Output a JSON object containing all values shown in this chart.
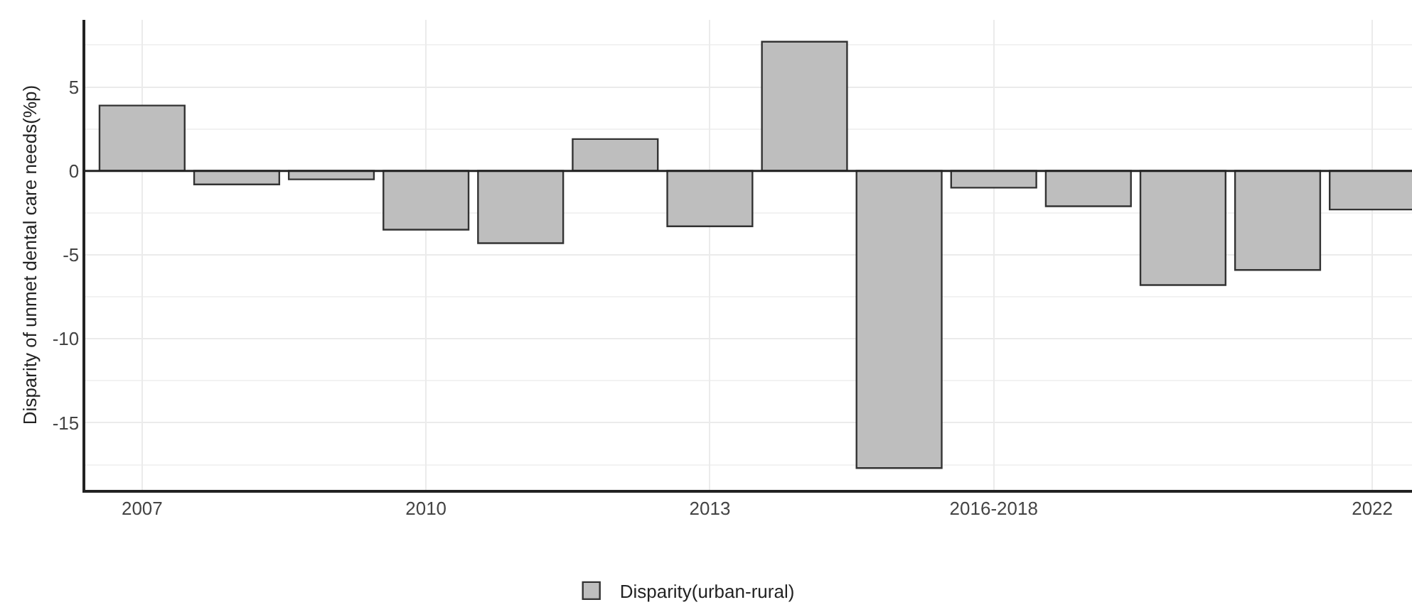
{
  "chart_data": {
    "type": "bar",
    "ylabel": "Disparity of unmet dental care needs(%p)",
    "categories": [
      "2007",
      null,
      null,
      "2010",
      null,
      null,
      "2013",
      null,
      null,
      "2016-2018",
      null,
      null,
      null,
      "2022"
    ],
    "series": [
      {
        "name": "Disparity(urban-rural)",
        "color": "#bebebe",
        "values": [
          3.9,
          -0.8,
          -0.5,
          -3.5,
          -4.3,
          1.9,
          -3.3,
          7.7,
          -17.7,
          -1.0,
          -2.1,
          -6.8,
          -5.9,
          -2.3
        ]
      }
    ],
    "ylim": [
      -19,
      9
    ],
    "yticks": [
      -15,
      -10,
      -5,
      0,
      5
    ],
    "grid": true,
    "legend": "bottom"
  }
}
